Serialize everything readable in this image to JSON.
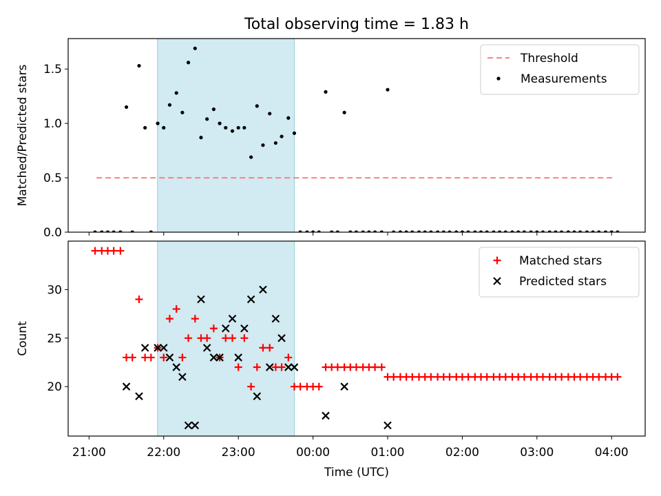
{
  "title": "Total observing time = 1.83 h",
  "chart_data": [
    {
      "type": "scatter",
      "panel": "top",
      "ylabel": "Matched/Predicted stars",
      "xlabel": "",
      "ylim": [
        0,
        1.78
      ],
      "yticks": [
        "0.0",
        "0.5",
        "1.0",
        "1.5"
      ],
      "ytick_values": [
        0,
        0.5,
        1.0,
        1.5
      ],
      "xlim_hours": [
        20.72,
        28.45
      ],
      "xticks": [
        "21:00",
        "22:00",
        "23:00",
        "00:00",
        "01:00",
        "02:00",
        "03:00",
        "04:00"
      ],
      "xtick_hours": [
        21,
        22,
        23,
        24,
        25,
        26,
        27,
        28
      ],
      "shaded_interval_hours": [
        21.917,
        23.75
      ],
      "shaded_color": "#add8e6",
      "threshold": {
        "name": "Threshold",
        "value": 0.5,
        "x_range_hours": [
          21.1,
          28.05
        ],
        "color": "#ff7f7f"
      },
      "legend": [
        {
          "label": "Threshold",
          "style": "dashed-line",
          "color": "#ff7f7f"
        },
        {
          "label": "Measurements",
          "style": "dot",
          "color": "#000000"
        }
      ],
      "series": [
        {
          "name": "Measurements",
          "color": "#000000",
          "points": [
            [
              21.08,
              0
            ],
            [
              21.17,
              0
            ],
            [
              21.25,
              0
            ],
            [
              21.33,
              0
            ],
            [
              21.42,
              0
            ],
            [
              21.5,
              1.15
            ],
            [
              21.58,
              0
            ],
            [
              21.67,
              1.53
            ],
            [
              21.75,
              0.96
            ],
            [
              21.83,
              0
            ],
            [
              21.92,
              1.0
            ],
            [
              22.0,
              0.96
            ],
            [
              22.08,
              1.17
            ],
            [
              22.17,
              1.28
            ],
            [
              22.25,
              1.1
            ],
            [
              22.33,
              1.56
            ],
            [
              22.42,
              1.69
            ],
            [
              22.5,
              0.87
            ],
            [
              22.58,
              1.04
            ],
            [
              22.67,
              1.13
            ],
            [
              22.75,
              1.0
            ],
            [
              22.83,
              0.96
            ],
            [
              22.92,
              0.93
            ],
            [
              23.0,
              0.96
            ],
            [
              23.08,
              0.96
            ],
            [
              23.17,
              0.69
            ],
            [
              23.25,
              1.16
            ],
            [
              23.33,
              0.8
            ],
            [
              23.42,
              1.09
            ],
            [
              23.5,
              0.82
            ],
            [
              23.58,
              0.88
            ],
            [
              23.67,
              1.05
            ],
            [
              23.75,
              0.91
            ],
            [
              23.83,
              0
            ],
            [
              23.92,
              0
            ],
            [
              24.0,
              0
            ],
            [
              24.08,
              0
            ],
            [
              24.17,
              1.29
            ],
            [
              24.25,
              0
            ],
            [
              24.33,
              0
            ],
            [
              24.42,
              1.1
            ],
            [
              24.5,
              0
            ],
            [
              24.58,
              0
            ],
            [
              24.67,
              0
            ],
            [
              24.75,
              0
            ],
            [
              24.83,
              0
            ],
            [
              24.92,
              0
            ],
            [
              25.0,
              1.31
            ],
            [
              25.08,
              0
            ],
            [
              25.17,
              0
            ],
            [
              25.25,
              0
            ],
            [
              25.33,
              0
            ],
            [
              25.42,
              0
            ],
            [
              25.5,
              0
            ],
            [
              25.58,
              0
            ],
            [
              25.67,
              0
            ],
            [
              25.75,
              0
            ],
            [
              25.83,
              0
            ],
            [
              25.92,
              0
            ],
            [
              26.0,
              0
            ],
            [
              26.08,
              0
            ],
            [
              26.17,
              0
            ],
            [
              26.25,
              0
            ],
            [
              26.33,
              0
            ],
            [
              26.42,
              0
            ],
            [
              26.5,
              0
            ],
            [
              26.58,
              0
            ],
            [
              26.67,
              0
            ],
            [
              26.75,
              0
            ],
            [
              26.83,
              0
            ],
            [
              26.92,
              0
            ],
            [
              27.0,
              0
            ],
            [
              27.08,
              0
            ],
            [
              27.17,
              0
            ],
            [
              27.25,
              0
            ],
            [
              27.33,
              0
            ],
            [
              27.42,
              0
            ],
            [
              27.5,
              0
            ],
            [
              27.58,
              0
            ],
            [
              27.67,
              0
            ],
            [
              27.75,
              0
            ],
            [
              27.83,
              0
            ],
            [
              27.92,
              0
            ],
            [
              28.0,
              0
            ],
            [
              28.08,
              0
            ]
          ]
        }
      ]
    },
    {
      "type": "scatter",
      "panel": "bottom",
      "ylabel": "Count",
      "xlabel": "Time (UTC)",
      "ylim": [
        14.9,
        35.0
      ],
      "yticks": [
        "20",
        "25",
        "30"
      ],
      "ytick_values": [
        20,
        25,
        30
      ],
      "xlim_hours": [
        20.72,
        28.45
      ],
      "xticks": [
        "21:00",
        "22:00",
        "23:00",
        "00:00",
        "01:00",
        "02:00",
        "03:00",
        "04:00"
      ],
      "xtick_hours": [
        21,
        22,
        23,
        24,
        25,
        26,
        27,
        28
      ],
      "shaded_interval_hours": [
        21.917,
        23.75
      ],
      "shaded_color": "#add8e6",
      "legend": [
        {
          "label": "Matched stars",
          "style": "plus",
          "color": "#ff0000"
        },
        {
          "label": "Predicted stars",
          "style": "x",
          "color": "#000000"
        }
      ],
      "series": [
        {
          "name": "Matched stars",
          "marker": "plus",
          "color": "#ff0000",
          "points": [
            [
              21.08,
              34
            ],
            [
              21.17,
              34
            ],
            [
              21.25,
              34
            ],
            [
              21.33,
              34
            ],
            [
              21.42,
              34
            ],
            [
              21.5,
              23
            ],
            [
              21.58,
              23
            ],
            [
              21.67,
              29
            ],
            [
              21.75,
              23
            ],
            [
              21.83,
              23
            ],
            [
              21.92,
              24
            ],
            [
              22.0,
              23
            ],
            [
              22.08,
              27
            ],
            [
              22.17,
              28
            ],
            [
              22.25,
              23
            ],
            [
              22.33,
              25
            ],
            [
              22.42,
              27
            ],
            [
              22.5,
              25
            ],
            [
              22.58,
              25
            ],
            [
              22.67,
              26
            ],
            [
              22.75,
              23
            ],
            [
              22.83,
              25
            ],
            [
              22.92,
              25
            ],
            [
              23.0,
              22
            ],
            [
              23.08,
              25
            ],
            [
              23.17,
              20
            ],
            [
              23.25,
              22
            ],
            [
              23.33,
              24
            ],
            [
              23.42,
              24
            ],
            [
              23.5,
              22
            ],
            [
              23.58,
              22
            ],
            [
              23.67,
              23
            ],
            [
              23.75,
              20
            ],
            [
              23.83,
              20
            ],
            [
              23.92,
              20
            ],
            [
              24.0,
              20
            ],
            [
              24.08,
              20
            ],
            [
              24.17,
              22
            ],
            [
              24.25,
              22
            ],
            [
              24.33,
              22
            ],
            [
              24.42,
              22
            ],
            [
              24.5,
              22
            ],
            [
              24.58,
              22
            ],
            [
              24.67,
              22
            ],
            [
              24.75,
              22
            ],
            [
              24.83,
              22
            ],
            [
              24.92,
              22
            ],
            [
              25.0,
              21
            ],
            [
              25.08,
              21
            ],
            [
              25.17,
              21
            ],
            [
              25.25,
              21
            ],
            [
              25.33,
              21
            ],
            [
              25.42,
              21
            ],
            [
              25.5,
              21
            ],
            [
              25.58,
              21
            ],
            [
              25.67,
              21
            ],
            [
              25.75,
              21
            ],
            [
              25.83,
              21
            ],
            [
              25.92,
              21
            ],
            [
              26.0,
              21
            ],
            [
              26.08,
              21
            ],
            [
              26.17,
              21
            ],
            [
              26.25,
              21
            ],
            [
              26.33,
              21
            ],
            [
              26.42,
              21
            ],
            [
              26.5,
              21
            ],
            [
              26.58,
              21
            ],
            [
              26.67,
              21
            ],
            [
              26.75,
              21
            ],
            [
              26.83,
              21
            ],
            [
              26.92,
              21
            ],
            [
              27.0,
              21
            ],
            [
              27.08,
              21
            ],
            [
              27.17,
              21
            ],
            [
              27.25,
              21
            ],
            [
              27.33,
              21
            ],
            [
              27.42,
              21
            ],
            [
              27.5,
              21
            ],
            [
              27.58,
              21
            ],
            [
              27.67,
              21
            ],
            [
              27.75,
              21
            ],
            [
              27.83,
              21
            ],
            [
              27.92,
              21
            ],
            [
              28.0,
              21
            ],
            [
              28.08,
              21
            ]
          ]
        },
        {
          "name": "Predicted stars",
          "marker": "x",
          "color": "#000000",
          "points": [
            [
              21.5,
              20
            ],
            [
              21.67,
              19
            ],
            [
              21.75,
              24
            ],
            [
              21.92,
              24
            ],
            [
              22.0,
              24
            ],
            [
              22.08,
              23
            ],
            [
              22.17,
              22
            ],
            [
              22.25,
              21
            ],
            [
              22.33,
              16
            ],
            [
              22.42,
              16
            ],
            [
              22.5,
              29
            ],
            [
              22.58,
              24
            ],
            [
              22.67,
              23
            ],
            [
              22.75,
              23
            ],
            [
              22.83,
              26
            ],
            [
              22.92,
              27
            ],
            [
              23.0,
              23
            ],
            [
              23.08,
              26
            ],
            [
              23.17,
              29
            ],
            [
              23.25,
              19
            ],
            [
              23.33,
              30
            ],
            [
              23.42,
              22
            ],
            [
              23.5,
              27
            ],
            [
              23.58,
              25
            ],
            [
              23.67,
              22
            ],
            [
              23.75,
              22
            ],
            [
              24.17,
              17
            ],
            [
              24.42,
              20
            ],
            [
              25.0,
              16
            ]
          ]
        }
      ]
    }
  ]
}
